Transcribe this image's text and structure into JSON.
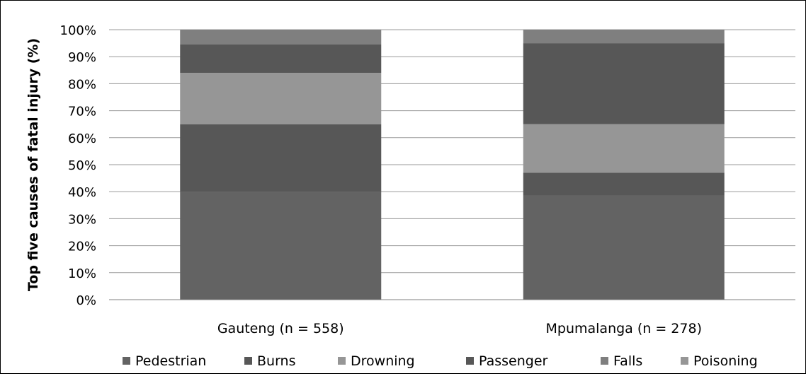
{
  "chart_data": {
    "type": "bar",
    "stacked": true,
    "title": "",
    "xlabel": "",
    "ylabel": "Top five causes of fatal injury (%)",
    "ylim": [
      0,
      100
    ],
    "yticks": [
      "0%",
      "10%",
      "20%",
      "30%",
      "40%",
      "50%",
      "60%",
      "70%",
      "80%",
      "90%",
      "100%"
    ],
    "grid": true,
    "legend_position": "bottom",
    "categories": [
      "Gauteng (n = 558)",
      "Mpumalanga (n = 278)"
    ],
    "series": [
      {
        "name": "Pedestrian",
        "color": "#636363",
        "values": [
          40,
          38.5
        ]
      },
      {
        "name": "Burns",
        "color": "#575757",
        "values": [
          25,
          8.5
        ]
      },
      {
        "name": "Drowning",
        "color": "#969696",
        "values": [
          19,
          0
        ]
      },
      {
        "name": "Passenger",
        "color": "#575757",
        "values": [
          10.5,
          0
        ]
      },
      {
        "name": "Falls",
        "color": "#7f7f7f",
        "values": [
          5.5,
          0
        ]
      },
      {
        "name": "Poisoning",
        "color": "#969696",
        "values": [
          0,
          18
        ]
      }
    ],
    "extra_segments": [
      {
        "category_index": 1,
        "series_name": "Passenger",
        "values": [
          30
        ]
      },
      {
        "category_index": 1,
        "series_name": "Falls",
        "values": [
          5
        ]
      }
    ]
  }
}
